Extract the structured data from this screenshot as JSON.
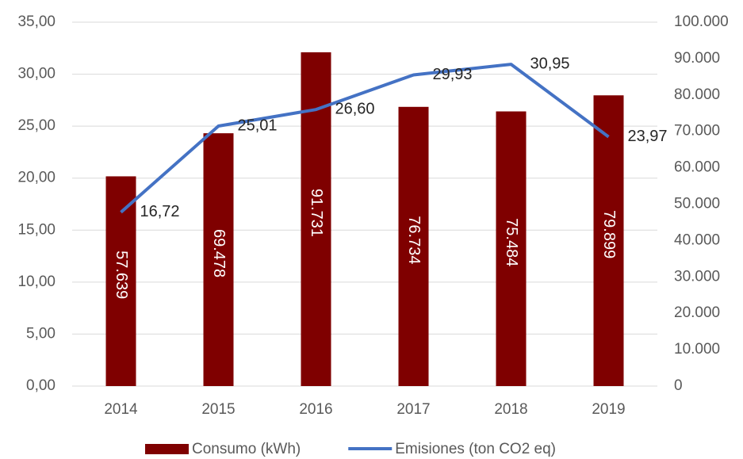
{
  "chart_data": {
    "type": "bar_line",
    "categories": [
      "2014",
      "2015",
      "2016",
      "2017",
      "2018",
      "2019"
    ],
    "series": [
      {
        "name": "Consumo (kWh)",
        "type": "bar",
        "axis": "y2",
        "color": "#7f0000",
        "values": [
          57639,
          69478,
          91731,
          76734,
          75484,
          79899
        ],
        "value_labels": [
          "57.639",
          "69.478",
          "91.731",
          "76.734",
          "75.484",
          "79.899"
        ]
      },
      {
        "name": "Emisiones (ton CO2 eq)",
        "type": "line",
        "axis": "y",
        "color": "#4472c4",
        "values": [
          16.72,
          25.01,
          26.6,
          29.93,
          30.95,
          23.97
        ],
        "value_labels": [
          "16,72",
          "25,01",
          "26,60",
          "29,93",
          "30,95",
          "23,97"
        ]
      }
    ],
    "ylim": [
      0,
      35
    ],
    "yticks": [
      {
        "value": 0,
        "label": "0,00"
      },
      {
        "value": 5,
        "label": "5,00"
      },
      {
        "value": 10,
        "label": "10,00"
      },
      {
        "value": 15,
        "label": "15,00"
      },
      {
        "value": 20,
        "label": "20,00"
      },
      {
        "value": 25,
        "label": "25,00"
      },
      {
        "value": 30,
        "label": "30,00"
      },
      {
        "value": 35,
        "label": "35,00"
      }
    ],
    "y2lim": [
      0,
      100000
    ],
    "y2ticks": [
      0,
      {
        "value": 10000,
        "label": "10.000"
      },
      {
        "value": 20000,
        "label": "20.000"
      },
      {
        "value": 30000,
        "label": "30.000"
      },
      {
        "value": 40000,
        "label": "40.000"
      },
      {
        "value": 50000,
        "label": "50.000"
      },
      {
        "value": 60000,
        "label": "60.000"
      },
      {
        "value": 70000,
        "label": "70.000"
      },
      {
        "value": 80000,
        "label": "80.000"
      },
      {
        "value": 90000,
        "label": "90.000"
      },
      {
        "value": 100000,
        "label": "100.000"
      }
    ],
    "grid": true,
    "legend": "bottom"
  }
}
